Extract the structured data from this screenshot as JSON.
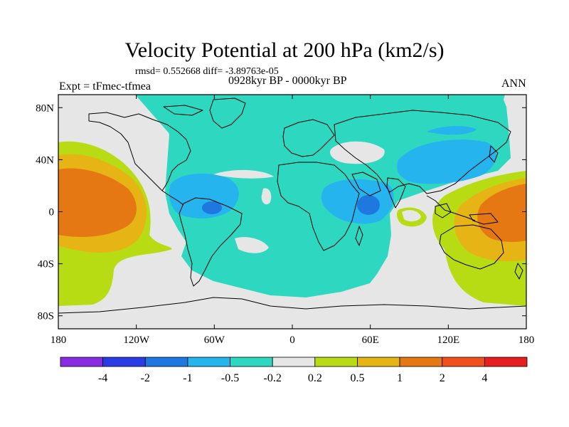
{
  "header": {
    "title": "Velocity Potential at 200 hPa (km2/s)",
    "stats": "rmsd= 0.552668 diff= -3.89763e-05",
    "experiment": "Expt = tFmec-tfmea",
    "period": "0928kyr BP - 0000kyr BP",
    "season": "ANN"
  },
  "chart_data": {
    "type": "heatmap",
    "title": "Velocity Potential at 200 hPa (km2/s)",
    "projection": "cylindrical-equidistant",
    "xlim": [
      -180,
      180
    ],
    "ylim": [
      -90,
      90
    ],
    "x_ticks": [
      {
        "value": -180,
        "label": "180"
      },
      {
        "value": -120,
        "label": "120W"
      },
      {
        "value": -60,
        "label": "60W"
      },
      {
        "value": 0,
        "label": "0"
      },
      {
        "value": 60,
        "label": "60E"
      },
      {
        "value": 120,
        "label": "120E"
      },
      {
        "value": 180,
        "label": "180"
      }
    ],
    "y_ticks": [
      {
        "value": 80,
        "label": "80N"
      },
      {
        "value": 40,
        "label": "40N"
      },
      {
        "value": 0,
        "label": "0"
      },
      {
        "value": -40,
        "label": "40S"
      },
      {
        "value": -80,
        "label": "80S"
      }
    ],
    "colorbar": {
      "colors": [
        "#8a2be2",
        "#2a3ce6",
        "#1f78e0",
        "#26b4ee",
        "#2ed8c0",
        "#e6e6e6",
        "#b8dc14",
        "#e6b414",
        "#e67814",
        "#f0501e",
        "#e61e1e"
      ],
      "levels": [
        -4,
        -2,
        -1,
        -0.5,
        -0.2,
        0.2,
        0.5,
        1,
        2,
        4
      ],
      "level_labels": [
        "-4",
        "-2",
        "-1",
        "-0.5",
        "-0.2",
        "0.2",
        "0.5",
        "1",
        "2",
        "4"
      ]
    },
    "regions": [
      {
        "name": "western-hemisphere-tropical-pacific-positive",
        "class": "0.5 to 1",
        "lon_range": [
          -180,
          -120
        ],
        "lat_range": [
          -40,
          40
        ]
      },
      {
        "name": "western-pacific-maritime-continent-positive",
        "class": "1 to 2",
        "lon_range": [
          125,
          180
        ],
        "lat_range": [
          -30,
          20
        ]
      },
      {
        "name": "atlantic-africa-negative",
        "class": "-0.5 to -0.2",
        "lon_range": [
          -70,
          80
        ],
        "lat_range": [
          -60,
          60
        ]
      },
      {
        "name": "amazon-minimum",
        "class": "-2 to -1",
        "lon_range": [
          -65,
          -55
        ],
        "lat_range": [
          -8,
          2
        ]
      },
      {
        "name": "east-africa-minimum",
        "class": "-2 to -1",
        "lon_range": [
          45,
          62
        ],
        "lat_range": [
          -5,
          8
        ]
      },
      {
        "name": "north-pacific-neutral",
        "class": "-0.2 to 0.2",
        "lon_range": [
          -180,
          -60
        ],
        "lat_range": [
          40,
          90
        ]
      }
    ]
  }
}
